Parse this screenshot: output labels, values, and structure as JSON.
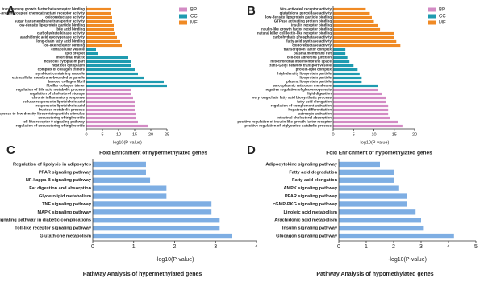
{
  "chart_data": [
    {
      "type": "bar",
      "orientation": "horizontal",
      "panel_label": "A",
      "xlabel": "-log10(P-value)",
      "categories": [
        "transforming growth factor beta receptor binding",
        "G-protein coupled chemoattractant receptor activity",
        "oxidoreductase activity",
        "sugar transmembrane transporter activity",
        "low-density lipoprotein particle binding",
        "bile acid binding",
        "carbohydrate kinase activity",
        "arachidonic acid epoxygenase activity",
        "long-chain fatty acid binding",
        "Toll-like receptor binding",
        "extracellular vesicle",
        "lipid droplet",
        "interstitial matrix",
        "host cell cytoplasm part",
        "host cell cytoplasm",
        "complex of collagen trimers",
        "symbiont-containing vacuole",
        "extracellular membrane-bounded organelle",
        "banded collagen fibril",
        "fibrillar collagen trimer",
        "regulation of bile acid metabolic process",
        "regulation of cholesterol storage",
        "chronic inflammatory response",
        "cellular response to lipoteichoic acid",
        "response to lipoteichoic acid",
        "fructose metabolic process",
        "cellular response to low-density lipoprotein particle stimulus",
        "sequestering of triglyceride",
        "toll-like receptor 9 signaling pathway",
        "regulation of sequestering of triglyceride"
      ],
      "series": [
        {
          "name": "BP",
          "color": "#d38bc4",
          "values": [
            null,
            null,
            null,
            null,
            null,
            null,
            null,
            null,
            null,
            null,
            null,
            null,
            null,
            null,
            null,
            null,
            null,
            null,
            null,
            null,
            14,
            14,
            14.5,
            15,
            15,
            15,
            15.5,
            15.5,
            16,
            19
          ]
        },
        {
          "name": "CC",
          "color": "#1f9bb0",
          "values": [
            null,
            null,
            null,
            null,
            null,
            null,
            null,
            null,
            null,
            null,
            3,
            3.5,
            13,
            14,
            14,
            15,
            16,
            18,
            24,
            25,
            null,
            null,
            null,
            null,
            null,
            null,
            null,
            null,
            null,
            null
          ]
        },
        {
          "name": "MF",
          "color": "#f08a24",
          "values": [
            7.5,
            7.5,
            8,
            8,
            8.5,
            8.5,
            9,
            9.5,
            10.5,
            11,
            null,
            null,
            null,
            null,
            null,
            null,
            null,
            null,
            null,
            null,
            null,
            null,
            null,
            null,
            null,
            null,
            null,
            null,
            null,
            null
          ]
        }
      ],
      "xlim": [
        0,
        25
      ],
      "xticks": [
        0,
        5,
        10,
        15,
        20,
        25
      ],
      "legend": "right"
    },
    {
      "type": "bar",
      "orientation": "horizontal",
      "panel_label": "B",
      "xlabel": "-log10(P-value)",
      "categories": [
        "Wnt-activated receptor activity",
        "glutathione peroxidase activity",
        "low-density lipoprotein particle binding",
        "GTPase activating protein binding",
        "insulin receptor binding",
        "insulin-like growth factor receptor binding",
        "natural killer cell lectin-like receptor binding",
        "carbohydrate phosphatase activity",
        "fatty acid synthase activity",
        "oxidoreductase activity",
        "transcription factor complex",
        "plasma membrane raft",
        "cell-cell adherens junction",
        "mitochondrial intermembrane space",
        "trans-Golgi network transport vesicle",
        "protein-lipid complex",
        "high-density lipoprotein particle",
        "lipoprotein particle",
        "plasma lipoprotein particle",
        "sarcoplasmic reticulum membrane",
        "negative regulation of gluconeogenesis",
        "lipid digestion",
        "very long-chain fatty acid biosynthetic process",
        "fatty acid elongation",
        "regulation of complement activation",
        "hepatocyte differentiation",
        "astrocyte activation",
        "intestinal cholesterol absorption",
        "positive regulation of insulin-like growth factor receptor",
        "positive regulation of triglyceride catabolic process"
      ],
      "series": [
        {
          "name": "BP",
          "color": "#d38bc4",
          "values": [
            null,
            null,
            null,
            null,
            null,
            null,
            null,
            null,
            null,
            null,
            null,
            null,
            null,
            null,
            null,
            null,
            null,
            null,
            null,
            null,
            11,
            12,
            13,
            13,
            13.5,
            13.5,
            13.5,
            14,
            16,
            17
          ]
        },
        {
          "name": "CC",
          "color": "#1f9bb0",
          "values": [
            null,
            null,
            null,
            null,
            null,
            null,
            null,
            null,
            null,
            null,
            3,
            3,
            3.5,
            4,
            5,
            6,
            6.5,
            7,
            7,
            11,
            null,
            null,
            null,
            null,
            null,
            null,
            null,
            null,
            null,
            null
          ]
        },
        {
          "name": "MF",
          "color": "#f08a24",
          "values": [
            8,
            9,
            9.5,
            10,
            11,
            11.5,
            15,
            15,
            15.5,
            16.5,
            null,
            null,
            null,
            null,
            null,
            null,
            null,
            null,
            null,
            null,
            null,
            null,
            null,
            null,
            null,
            null,
            null,
            null,
            null,
            null
          ]
        }
      ],
      "xlim": [
        0,
        20
      ],
      "xticks": [
        0,
        5,
        10,
        15,
        20
      ],
      "legend": "right"
    },
    {
      "type": "bar",
      "orientation": "horizontal",
      "panel_label": "C",
      "title": "Fold Enrichment of hypermethylated genes",
      "xlabel": "-log10(P-value)",
      "footer": "Pathway Analysis of hypermethylated genes",
      "categories": [
        "Regulation of lipolysis in adipocytes",
        "PPAR signaling pathway",
        "NF-kappa B signaling pathway",
        "Fat digestion and absorption",
        "Glycerolipid metabolism",
        "TNF signaling pathway",
        "MAPK signaling pathway",
        "AGE-RAGE signaling pathway in diabetic complications",
        "Toll-like receptor signaling pathway",
        "Glutathione metabolism"
      ],
      "values": [
        1.3,
        1.3,
        1.4,
        1.8,
        1.8,
        2.9,
        2.9,
        3.1,
        3.1,
        3.4
      ],
      "color": "#7eaee3",
      "xlim": [
        0,
        4
      ],
      "xticks": [
        0,
        1,
        2,
        3,
        4
      ]
    },
    {
      "type": "bar",
      "orientation": "horizontal",
      "panel_label": "D",
      "title": "Fold Enrichment of hypomethylated genes",
      "xlabel": "-log10(P-value)",
      "footer": "Pathway Analysis of hypomethylated genes",
      "categories": [
        "Adipocytokine signaling pathway",
        "Fatty acid degradation",
        "Fatty acid elongation",
        "AMPK signaling pathway",
        "PPAR signaling pathway",
        "cGMP-PKG signaling pathway",
        "Linoleic acid metabolism",
        "Arachidonic acid metabolism",
        "Insulin signaling pathway",
        "Glucagon signaling pathway"
      ],
      "values": [
        1.5,
        2.0,
        2.0,
        2.2,
        2.5,
        2.5,
        2.8,
        3.0,
        3.1,
        4.2
      ],
      "color": "#7eaee3",
      "xlim": [
        0,
        5
      ],
      "xticks": [
        0,
        1,
        2,
        3,
        4,
        5
      ]
    }
  ]
}
